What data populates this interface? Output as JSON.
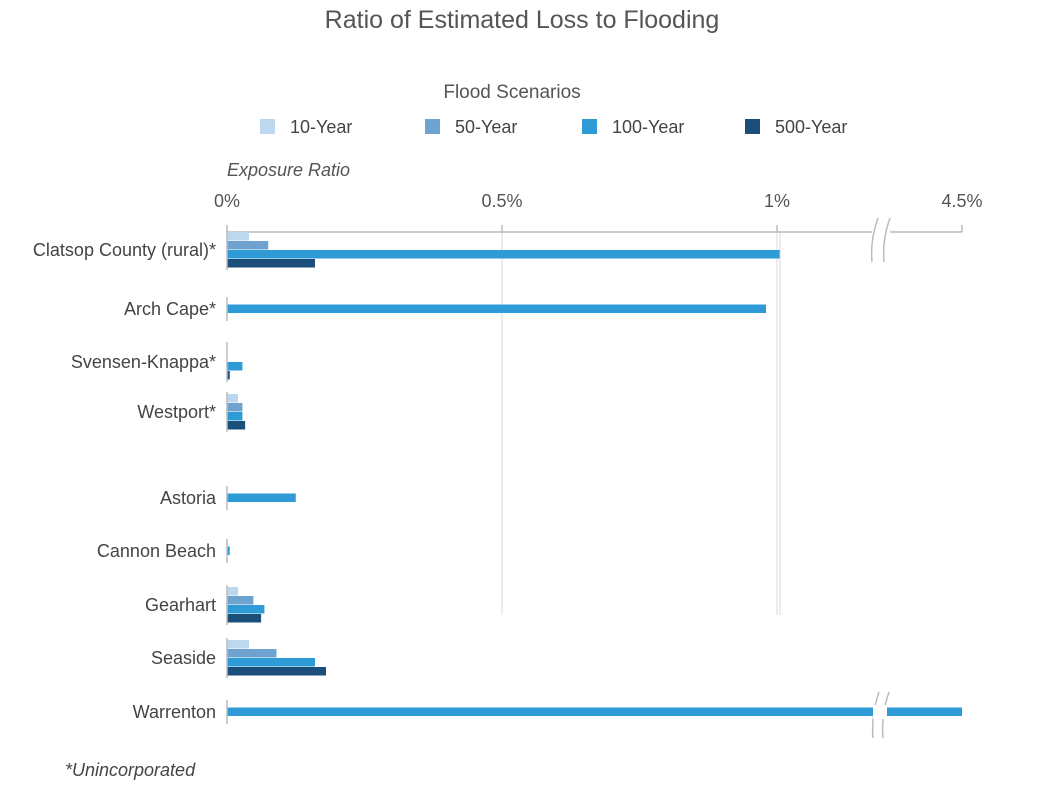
{
  "chart_data": {
    "type": "bar",
    "orientation": "horizontal",
    "title": "Ratio of Estimated Loss to Flooding",
    "legend_title": "Flood Scenarios",
    "legend_placement": "top",
    "axis_title": "Exposure Ratio",
    "axis_unit": "percent",
    "axis_break": "between 1% and 4.5%",
    "ticks": [
      "0%",
      "0.5%",
      "1%",
      "4.5%"
    ],
    "tick_values": [
      0,
      0.5,
      1.0,
      4.5
    ],
    "xlim": [
      0,
      4.5
    ],
    "grid": true,
    "categories": [
      "Clatsop County (rural)*",
      "Arch Cape*",
      "Svensen-Knappa*",
      "Westport*",
      "Astoria",
      "Cannon Beach",
      "Gearhart",
      "Seaside",
      "Warrenton"
    ],
    "series": [
      {
        "name": "10-Year",
        "color": "#BDD7EE",
        "values": [
          0.04,
          0,
          0,
          0.02,
          0,
          0,
          0.02,
          0.04,
          0
        ]
      },
      {
        "name": "50-Year",
        "color": "#6FA3CF",
        "values": [
          0.075,
          0,
          0,
          0.028,
          0,
          0,
          0.048,
          0.09,
          0
        ]
      },
      {
        "name": "100-Year",
        "color": "#2E9BD6",
        "values": [
          1.05,
          0.98,
          0.028,
          0.028,
          0.125,
          0.005,
          0.068,
          0.16,
          4.5
        ]
      },
      {
        "name": "500-Year",
        "color": "#1B4F7A",
        "values": [
          0.16,
          0,
          0.005,
          0.033,
          0,
          0,
          0.062,
          0.18,
          0
        ]
      }
    ],
    "footnote": "*Unincorporated"
  }
}
